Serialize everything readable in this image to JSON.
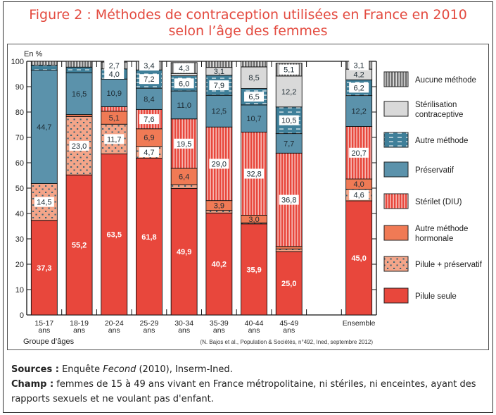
{
  "title_line1": "Figure 2 : Méthodes de contraception utilisées en France en 2010",
  "title_line2": "selon l’âge des femmes",
  "chart_data": {
    "type": "bar",
    "stacked": true,
    "ylabel": "En %",
    "xlabel": "Groupe d’âges",
    "ylim": [
      0,
      100
    ],
    "yticks": [
      0,
      10,
      20,
      30,
      40,
      50,
      60,
      70,
      80,
      90,
      100
    ],
    "categories": [
      {
        "l1": "15-17",
        "l2": "ans"
      },
      {
        "l1": "18-19",
        "l2": "ans"
      },
      {
        "l1": "20-24",
        "l2": "ans"
      },
      {
        "l1": "25-29",
        "l2": "ans"
      },
      {
        "l1": "30-34",
        "l2": "ans"
      },
      {
        "l1": "35-39",
        "l2": "ans"
      },
      {
        "l1": "40-44",
        "l2": "ans"
      },
      {
        "l1": "45-49",
        "l2": "ans"
      },
      {
        "l1": "",
        "l2": ""
      },
      {
        "l1": "Ensemble",
        "l2": ""
      }
    ],
    "series": [
      {
        "name": "Pilule seule",
        "color": "#e8473c",
        "pattern": "solid",
        "label_color": "#ffffff",
        "values": [
          37.3,
          55.2,
          63.5,
          61.8,
          49.9,
          40.2,
          35.9,
          25.0,
          null,
          45.0
        ],
        "labels": [
          "37,3",
          "55,2",
          "63,5",
          "61,8",
          "49,9",
          "40,2",
          "35,9",
          "25,0",
          "",
          "45,0"
        ]
      },
      {
        "name": "Pilule + préservatif",
        "color": "#f4a589",
        "pattern": "dots",
        "values": [
          14.5,
          23.0,
          11.7,
          4.7,
          1.5,
          1.0,
          0.4,
          1.0,
          null,
          4.6
        ],
        "labels": [
          "14,5",
          "23,0",
          "11,7",
          "4,7",
          "",
          "",
          "",
          "",
          "",
          "4,6"
        ]
      },
      {
        "name": "Autre méthode hormonale",
        "color": "#f07a55",
        "pattern": "solid",
        "values": [
          0,
          0.8,
          5.1,
          6.9,
          6.4,
          3.9,
          3.0,
          1.0,
          null,
          4.0
        ],
        "labels": [
          "",
          "",
          "5,1",
          "6,9",
          "6,4",
          "3,9",
          "3,0",
          "",
          "",
          "4,0"
        ]
      },
      {
        "name": "Stérilet (DIU)",
        "color": "#e8473c",
        "pattern": "vlines",
        "values": [
          0,
          0,
          1.8,
          7.6,
          19.5,
          29.0,
          32.8,
          36.8,
          null,
          20.7
        ],
        "labels": [
          "",
          "",
          "",
          "7,6",
          "19,5",
          "29,0",
          "32,8",
          "36,8",
          "",
          "20,7"
        ]
      },
      {
        "name": "Préservatif",
        "color": "#5b92ab",
        "pattern": "solid",
        "values": [
          44.7,
          16.5,
          10.9,
          8.4,
          11.0,
          12.5,
          10.7,
          7.7,
          null,
          12.2
        ],
        "labels": [
          "44,7",
          "16,5",
          "10,9",
          "8,4",
          "11,0",
          "12,5",
          "10,7",
          "7,7",
          "",
          "12,2"
        ]
      },
      {
        "name": "Autre méthode",
        "color": "#3f7f99",
        "pattern": "dashes",
        "values": [
          2.0,
          2.2,
          4.0,
          7.2,
          6.0,
          7.9,
          6.5,
          10.5,
          null,
          6.2
        ],
        "labels": [
          "",
          "",
          "4,0",
          "7,2",
          "6,0",
          "7,9",
          "6,5",
          "10,5",
          "",
          "6,2"
        ]
      },
      {
        "name": "Stérilisation contraceptive",
        "color": "#d9d9d9",
        "pattern": "solid",
        "values": [
          0,
          0,
          0,
          0,
          0.9,
          3.1,
          8.5,
          12.2,
          null,
          4.2
        ],
        "labels": [
          "",
          "",
          "",
          "",
          "",
          "3,1",
          "8,5",
          "12,2",
          "",
          "4,2"
        ]
      },
      {
        "name": "Aucune méthode",
        "color": "#777777",
        "pattern": "vlines_gray",
        "values": [
          1.5,
          2.3,
          2.7,
          3.4,
          4.3,
          2.4,
          2.2,
          5.1,
          null,
          3.1
        ],
        "labels": [
          "",
          "",
          "2,7",
          "3,4",
          "4,3",
          "",
          "",
          "5,1",
          "",
          "3,1"
        ]
      }
    ],
    "legend": [
      "Aucune méthode",
      "Stérilisation|contraceptive",
      "Autre méthode",
      "Préservatif",
      "Stérilet (DIU)",
      "Autre méthode|hormonale",
      "Pilule + préservatif",
      "Pilule seule"
    ],
    "legend_position": "right",
    "source_note": "(N. Bajos et al., Population & Sociétés, n°492, Ined, septembre 2012)"
  },
  "notes": {
    "sources_label": "Sources :",
    "sources_text_a": " Enquête ",
    "sources_text_italic": "Fecond",
    "sources_text_b": " (2010), Inserm-Ined.",
    "champ_label": "Champ :",
    "champ_text": " femmes de 15 à 49 ans vivant en France métropolitaine, ni stériles, ni enceintes, ayant des rapports sexuels et ne voulant pas d'enfant."
  }
}
